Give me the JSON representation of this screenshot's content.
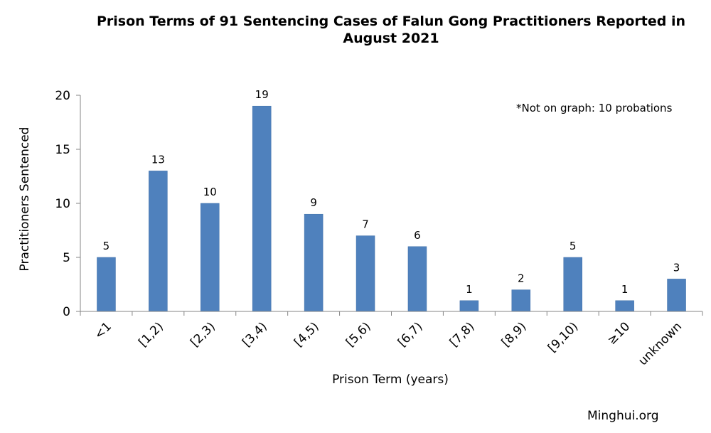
{
  "chart_data": {
    "type": "bar",
    "title_line1": "Prison Terms of 91 Sentencing Cases of Falun Gong Practitioners Reported in",
    "title_line2": "August 2021",
    "xlabel": "Prison Term (years)",
    "ylabel": "Practitioners Sentenced",
    "categories": [
      "<1",
      "[1,2)",
      "[2,3)",
      "[3,4)",
      "[4,5)",
      "[5,6)",
      "[6,7)",
      "[7,8)",
      "[8,9)",
      "[9,10)",
      "≥10",
      "unknown"
    ],
    "values": [
      5,
      13,
      10,
      19,
      9,
      7,
      6,
      1,
      2,
      5,
      1,
      3
    ],
    "ylim": [
      0,
      20
    ],
    "yticks": [
      0,
      5,
      10,
      15,
      20
    ],
    "grid": false,
    "bar_color": "#4f81bd",
    "annotation": "*Not on graph: 10 probations"
  },
  "credit": "Minghui.org"
}
